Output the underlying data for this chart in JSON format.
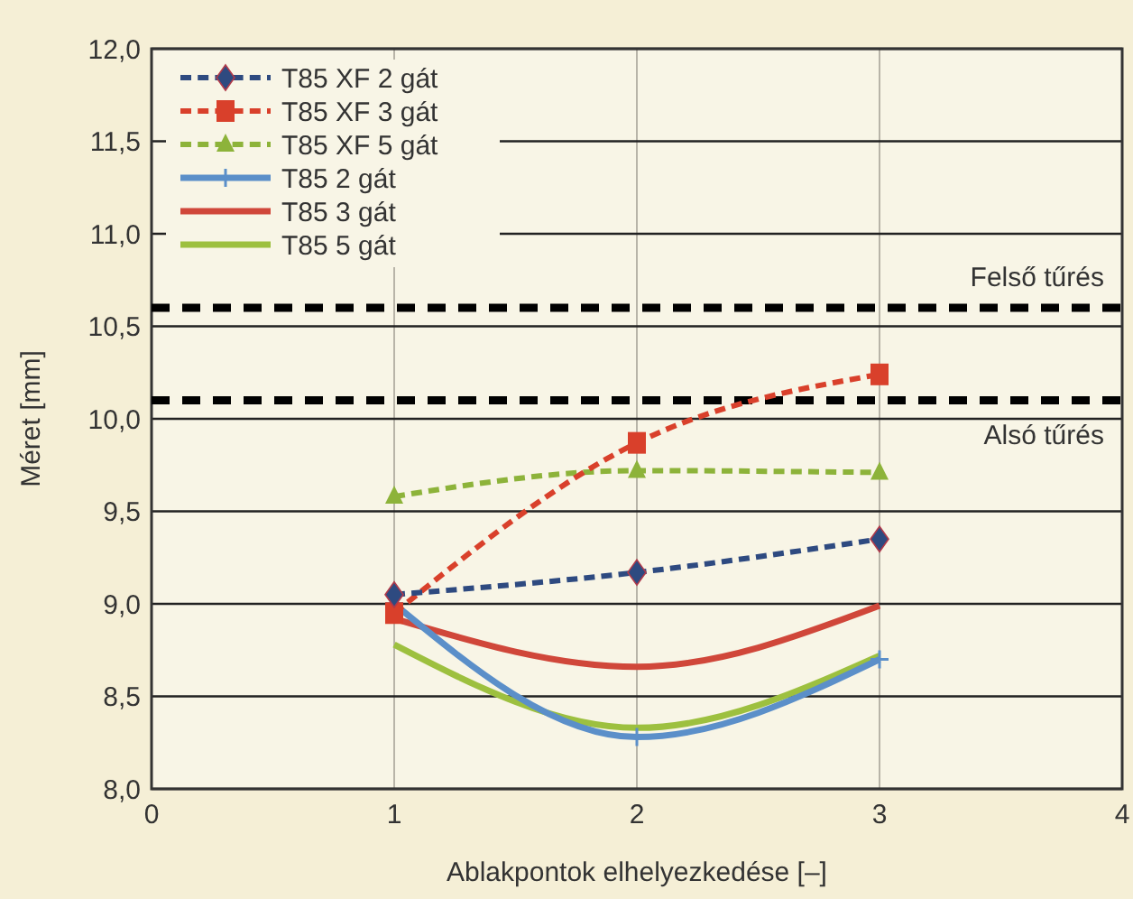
{
  "chart_data": {
    "type": "line",
    "xlabel": "Ablakpontok elhelyezkedése [–]",
    "ylabel": "Méret [mm]",
    "x": [
      1,
      2,
      3
    ],
    "xlim": [
      0,
      4
    ],
    "xticks": [
      0,
      1,
      2,
      3,
      4
    ],
    "ylim": [
      8,
      12
    ],
    "yticks": [
      {
        "value": 8,
        "label": "8,0"
      },
      {
        "value": 8.5,
        "label": "8,5"
      },
      {
        "value": 9,
        "label": "9,0"
      },
      {
        "value": 9.5,
        "label": "9,5"
      },
      {
        "value": 10,
        "label": "10,0"
      },
      {
        "value": 10.5,
        "label": "10,5"
      },
      {
        "value": 11,
        "label": "11,0"
      },
      {
        "value": 11.5,
        "label": "11,5"
      },
      {
        "value": 12,
        "label": "12,0"
      }
    ],
    "grid": true,
    "legend": "top left",
    "series": [
      {
        "name": "T85 XF 2 gát",
        "color": "#2e4a80",
        "values": [
          9.05,
          9.17,
          9.35
        ],
        "marker": "diamond",
        "line_style": "dashed"
      },
      {
        "name": "T85 XF 3 gát",
        "color": "#d9402b",
        "values": [
          8.95,
          9.87,
          10.24
        ],
        "marker": "square",
        "line_style": "dashed"
      },
      {
        "name": "T85 XF 5 gát",
        "color": "#8db33a",
        "values": [
          9.58,
          9.72,
          9.71
        ],
        "marker": "triangle",
        "line_style": "dashed"
      },
      {
        "name": "T85 2 gát",
        "color": "#5b8fc9",
        "values": [
          9.0,
          8.28,
          8.7
        ],
        "marker": "cross",
        "line_style": "solid"
      },
      {
        "name": "T85 3 gát",
        "color": "#d0473a",
        "values": [
          8.92,
          8.66,
          8.99
        ],
        "marker": "none",
        "line_style": "solid"
      },
      {
        "name": "T85 5 gát",
        "color": "#9dc03f",
        "values": [
          8.78,
          8.33,
          8.72
        ],
        "marker": "none",
        "line_style": "solid"
      }
    ],
    "ref_lines": [
      {
        "axis": "y",
        "value": 10.6,
        "label": "Felső tűrés",
        "color": "#000000",
        "line_style": "dashed"
      },
      {
        "axis": "y",
        "value": 10.1,
        "label": "Alsó tűrés",
        "color": "#000000",
        "line_style": "dashed"
      }
    ]
  }
}
